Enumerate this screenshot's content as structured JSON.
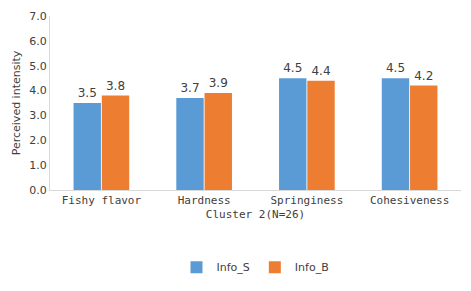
{
  "chart_data": {
    "type": "bar",
    "x_label": "Cluster 2(N=26)",
    "y_label": "Perceived intensity",
    "categories": [
      "Fishy flavor",
      "Hardness",
      "Springiness",
      "Cohesiveness"
    ],
    "series": [
      {
        "name": "Info_S",
        "color": "#5B9BD5",
        "values": [
          3.5,
          3.7,
          4.5,
          4.5
        ]
      },
      {
        "name": "Info_B",
        "color": "#ED7D31",
        "values": [
          3.8,
          3.9,
          4.4,
          4.2
        ]
      }
    ],
    "ylim": [
      0,
      7
    ],
    "yticks": [
      {
        "value": 0,
        "label": "0.0"
      },
      {
        "value": 1,
        "label": "1.0"
      },
      {
        "value": 2,
        "label": "2.0"
      },
      {
        "value": 3,
        "label": "3.0"
      },
      {
        "value": 4,
        "label": "4.0"
      },
      {
        "value": 5,
        "label": "5.0"
      },
      {
        "value": 6,
        "label": "6.0"
      },
      {
        "value": 7,
        "label": "7.0"
      }
    ],
    "grid": false,
    "data_labels": true,
    "legend": "bottom"
  }
}
